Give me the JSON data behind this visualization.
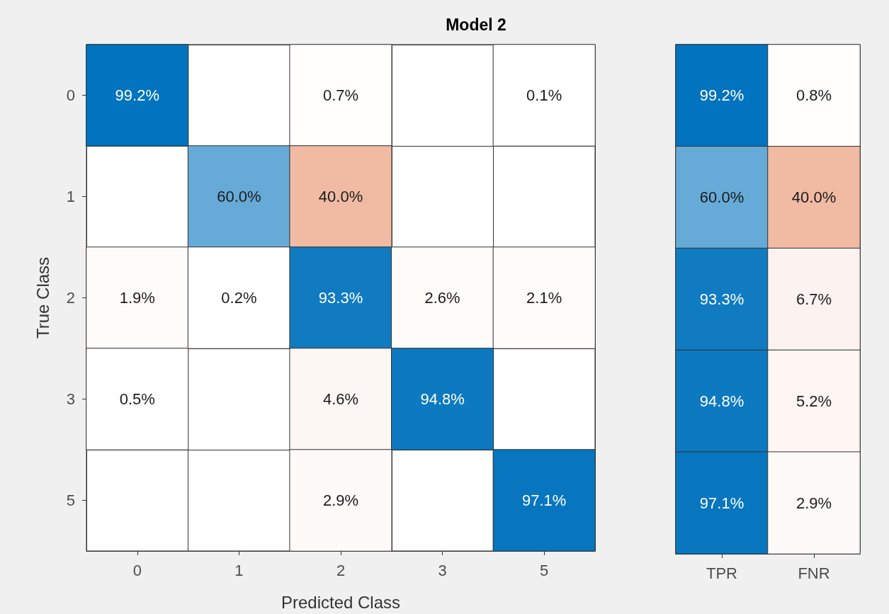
{
  "chart_data": [
    {
      "type": "heatmap",
      "title": "Model 2",
      "xlabel": "Predicted Class",
      "ylabel": "True Class",
      "categories": [
        "0",
        "1",
        "2",
        "3",
        "5"
      ],
      "y_categories": [
        "0",
        "1",
        "2",
        "3",
        "5"
      ],
      "cells": [
        [
          99.2,
          null,
          0.7,
          null,
          0.1
        ],
        [
          null,
          60.0,
          40.0,
          null,
          null
        ],
        [
          1.9,
          0.2,
          93.3,
          2.6,
          2.1
        ],
        [
          0.5,
          null,
          4.6,
          94.8,
          null
        ],
        [
          null,
          null,
          2.9,
          null,
          97.1
        ]
      ],
      "cell_labels": [
        [
          "99.2%",
          null,
          "0.7%",
          null,
          "0.1%"
        ],
        [
          null,
          "60.0%",
          "40.0%",
          null,
          null
        ],
        [
          "1.9%",
          "0.2%",
          "93.3%",
          "2.6%",
          "2.1%"
        ],
        [
          "0.5%",
          null,
          "4.6%",
          "94.8%",
          null
        ],
        [
          null,
          null,
          "2.9%",
          null,
          "97.1%"
        ]
      ]
    },
    {
      "type": "heatmap",
      "categories": [
        "TPR",
        "FNR"
      ],
      "y_categories": [
        "0",
        "1",
        "2",
        "3",
        "5"
      ],
      "tick_labels": "x",
      "cells": [
        [
          99.2,
          0.8
        ],
        [
          60.0,
          40.0
        ],
        [
          93.3,
          6.7
        ],
        [
          94.8,
          5.2
        ],
        [
          97.1,
          2.9
        ]
      ],
      "cell_labels": [
        [
          "99.2%",
          "0.8%"
        ],
        [
          "60.0%",
          "40.0%"
        ],
        [
          "93.3%",
          "6.7%"
        ],
        [
          "94.8%",
          "5.2%"
        ],
        [
          "97.1%",
          "2.9%"
        ]
      ]
    }
  ]
}
